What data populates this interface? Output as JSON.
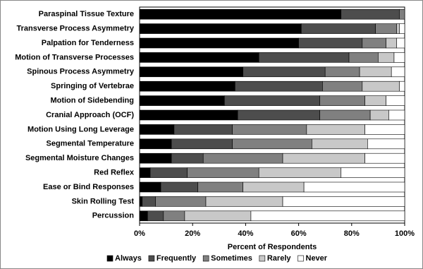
{
  "chart_data": {
    "type": "stacked-bar-horizontal",
    "categories": [
      "Paraspinal Tissue Texture",
      "Transverse Process Asymmetry",
      "Palpation for Tenderness",
      "Motion of Transverse Processes",
      "Spinous Process Asymmetry",
      "Springing of Vertebrae",
      "Motion of Sidebending",
      "Cranial Approach (OCF)",
      "Motion Using Long Leverage",
      "Segmental Temperature",
      "Segmental Moisture Changes",
      "Red Reflex",
      "Ease or Bind Responses",
      "Skin Rolling Test",
      "Percussion"
    ],
    "series": [
      {
        "name": "Always",
        "color": "#000000",
        "values": [
          76,
          61,
          60,
          45,
          39,
          36,
          32,
          37,
          13,
          12,
          12,
          4,
          8,
          1,
          3
        ]
      },
      {
        "name": "Frequently",
        "color": "#4d4d4d",
        "values": [
          22,
          28,
          24,
          34,
          31,
          33,
          36,
          31,
          22,
          23,
          12,
          14,
          14,
          5,
          6
        ]
      },
      {
        "name": "Sometimes",
        "color": "#808080",
        "values": [
          2,
          8,
          9,
          11,
          13,
          15,
          17,
          19,
          28,
          30,
          30,
          27,
          17,
          19,
          8
        ]
      },
      {
        "name": "Rarely",
        "color": "#c8c8c8",
        "values": [
          0,
          1,
          4,
          6,
          12,
          14,
          8,
          7,
          22,
          21,
          31,
          31,
          23,
          29,
          25
        ]
      },
      {
        "name": "Never",
        "color": "#ffffff",
        "values": [
          0,
          2,
          3,
          4,
          5,
          2,
          7,
          6,
          15,
          14,
          15,
          24,
          38,
          46,
          58
        ]
      }
    ],
    "x_label": "Percent of Respondents",
    "xlim": [
      0,
      100
    ],
    "xticks": [
      {
        "value": 0,
        "label": "0%"
      },
      {
        "value": 20,
        "label": "20%"
      },
      {
        "value": 40,
        "label": "40%"
      },
      {
        "value": 60,
        "label": "60%"
      },
      {
        "value": 80,
        "label": "80%"
      },
      {
        "value": 100,
        "label": "100%"
      }
    ],
    "legend": "bottom"
  }
}
